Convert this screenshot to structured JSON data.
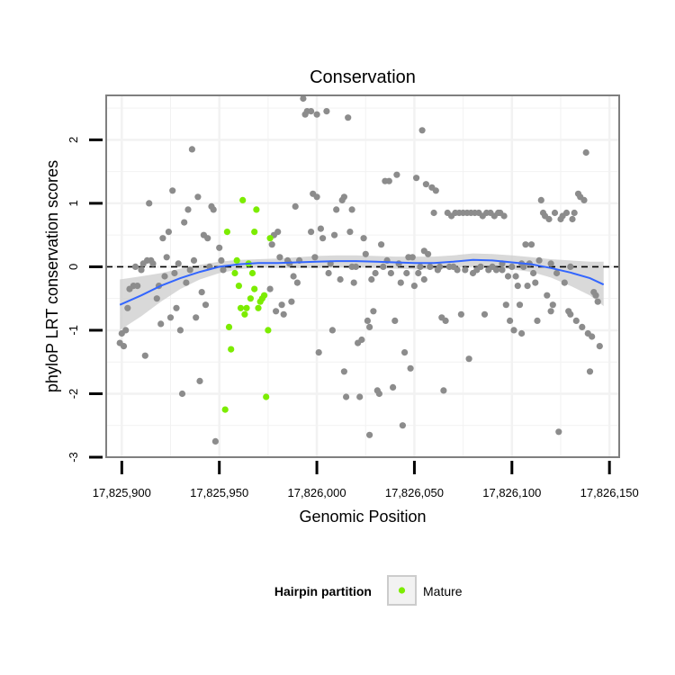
{
  "chart_data": {
    "type": "scatter",
    "title": "Conservation",
    "xlabel": "Genomic Position",
    "ylabel": "phyloP LRT conservation scores",
    "xlim": [
      17825892,
      17826155
    ],
    "ylim": [
      -3,
      2.7
    ],
    "x_ticks": [
      17825900,
      17825950,
      17826000,
      17826050,
      17826100,
      17826150
    ],
    "x_tick_labels": [
      "17,825,900",
      "17,825,950",
      "17,826,000",
      "17,826,050",
      "17,826,100",
      "17,826,150"
    ],
    "y_ticks": [
      -3,
      -2,
      -1,
      0,
      1,
      2
    ],
    "y_tick_labels": [
      "-3",
      "-2",
      "-1",
      "0",
      "1",
      "2"
    ],
    "reference_line": {
      "y": 0,
      "style": "dashed",
      "color": "#000000"
    },
    "grid": true,
    "legend": {
      "title": "Hairpin partition",
      "placement": "bottom",
      "entries": [
        "Mature"
      ]
    },
    "colors": {
      "other": "#8c8c8c",
      "mature": "#7cec00",
      "smooth": "#3366ff",
      "band": "#cccccc",
      "panel": "#ffffff",
      "grid": "#f2f2f2"
    },
    "smooth": {
      "x": [
        17825899,
        17825910,
        17825920,
        17825930,
        17825940,
        17825950,
        17825960,
        17825970,
        17825980,
        17825990,
        17826000,
        17826010,
        17826020,
        17826030,
        17826040,
        17826050,
        17826060,
        17826070,
        17826080,
        17826090,
        17826100,
        17826110,
        17826120,
        17826130,
        17826140,
        17826147
      ],
      "y": [
        -0.6,
        -0.45,
        -0.3,
        -0.18,
        -0.08,
        0.0,
        0.04,
        0.06,
        0.06,
        0.07,
        0.08,
        0.09,
        0.09,
        0.08,
        0.07,
        0.06,
        0.06,
        0.08,
        0.11,
        0.1,
        0.07,
        0.04,
        -0.02,
        -0.09,
        -0.18,
        -0.28
      ],
      "ci_upper": [
        -0.2,
        -0.15,
        -0.1,
        -0.03,
        0.03,
        0.08,
        0.11,
        0.12,
        0.13,
        0.15,
        0.17,
        0.18,
        0.18,
        0.17,
        0.16,
        0.16,
        0.16,
        0.18,
        0.21,
        0.2,
        0.18,
        0.15,
        0.12,
        0.1,
        0.08,
        0.08
      ],
      "ci_lower": [
        -1.0,
        -0.78,
        -0.55,
        -0.35,
        -0.2,
        -0.1,
        -0.04,
        -0.01,
        -0.02,
        -0.02,
        -0.02,
        -0.01,
        -0.01,
        -0.02,
        -0.03,
        -0.04,
        -0.04,
        -0.02,
        0.0,
        0.0,
        -0.04,
        -0.08,
        -0.17,
        -0.3,
        -0.45,
        -0.62
      ]
    },
    "series": [
      {
        "name": "Mature",
        "points": [
          [
            17825953,
            -2.25
          ],
          [
            17825954,
            0.55
          ],
          [
            17825955,
            -0.95
          ],
          [
            17825956,
            -1.3
          ],
          [
            17825958,
            -0.1
          ],
          [
            17825959,
            0.1
          ],
          [
            17825960,
            -0.3
          ],
          [
            17825961,
            -0.65
          ],
          [
            17825962,
            1.05
          ],
          [
            17825963,
            -0.75
          ],
          [
            17825964,
            -0.65
          ],
          [
            17825965,
            0.05
          ],
          [
            17825966,
            -0.5
          ],
          [
            17825967,
            -0.1
          ],
          [
            17825968,
            0.55
          ],
          [
            17825968,
            -0.35
          ],
          [
            17825969,
            0.9
          ],
          [
            17825970,
            -0.65
          ],
          [
            17825971,
            -0.55
          ],
          [
            17825972,
            -0.5
          ],
          [
            17825973,
            -0.45
          ],
          [
            17825974,
            -2.05
          ],
          [
            17825975,
            -1.0
          ],
          [
            17825976,
            0.45
          ]
        ]
      },
      {
        "name": "",
        "points": [
          [
            17825899,
            -1.2
          ],
          [
            17825900,
            -1.05
          ],
          [
            17825901,
            -1.25
          ],
          [
            17825902,
            -1.0
          ],
          [
            17825903,
            -0.65
          ],
          [
            17825904,
            -0.35
          ],
          [
            17825906,
            -0.3
          ],
          [
            17825907,
            0.0
          ],
          [
            17825908,
            -0.3
          ],
          [
            17825910,
            -0.05
          ],
          [
            17825911,
            0.05
          ],
          [
            17825912,
            -1.4
          ],
          [
            17825913,
            0.1
          ],
          [
            17825914,
            1.0
          ],
          [
            17825915,
            0.1
          ],
          [
            17825916,
            0.05
          ],
          [
            17825918,
            -0.5
          ],
          [
            17825919,
            -0.3
          ],
          [
            17825920,
            -0.9
          ],
          [
            17825921,
            0.45
          ],
          [
            17825922,
            -0.15
          ],
          [
            17825923,
            0.15
          ],
          [
            17825924,
            0.55
          ],
          [
            17825925,
            -0.8
          ],
          [
            17825926,
            1.2
          ],
          [
            17825927,
            -0.1
          ],
          [
            17825928,
            -0.65
          ],
          [
            17825929,
            0.05
          ],
          [
            17825930,
            -1.0
          ],
          [
            17825931,
            -2.0
          ],
          [
            17825932,
            0.7
          ],
          [
            17825933,
            -0.25
          ],
          [
            17825934,
            0.9
          ],
          [
            17825935,
            -0.05
          ],
          [
            17825936,
            1.85
          ],
          [
            17825937,
            0.1
          ],
          [
            17825938,
            -0.8
          ],
          [
            17825939,
            1.1
          ],
          [
            17825940,
            -1.8
          ],
          [
            17825941,
            -0.4
          ],
          [
            17825942,
            0.5
          ],
          [
            17825943,
            -0.6
          ],
          [
            17825944,
            0.45
          ],
          [
            17825945,
            0.0
          ],
          [
            17825946,
            0.95
          ],
          [
            17825947,
            0.9
          ],
          [
            17825948,
            -2.75
          ],
          [
            17825950,
            0.3
          ],
          [
            17825951,
            0.1
          ],
          [
            17825952,
            -0.05
          ]
        ]
      },
      {
        "name": "",
        "points": [
          [
            17825976,
            -0.35
          ],
          [
            17825977,
            0.35
          ],
          [
            17825978,
            0.5
          ],
          [
            17825979,
            -0.7
          ],
          [
            17825980,
            0.55
          ],
          [
            17825981,
            0.15
          ],
          [
            17825982,
            -0.6
          ],
          [
            17825983,
            -0.75
          ],
          [
            17825985,
            0.1
          ],
          [
            17825986,
            0.05
          ],
          [
            17825987,
            -0.55
          ],
          [
            17825988,
            -0.15
          ],
          [
            17825989,
            0.95
          ],
          [
            17825990,
            -0.25
          ],
          [
            17825991,
            0.1
          ],
          [
            17825993,
            2.65
          ],
          [
            17825994,
            2.4
          ],
          [
            17825995,
            2.45
          ],
          [
            17825997,
            0.55
          ],
          [
            17825997,
            2.45
          ],
          [
            17825998,
            1.15
          ],
          [
            17825999,
            0.15
          ],
          [
            17826000,
            2.4
          ],
          [
            17826000,
            1.1
          ],
          [
            17826001,
            -1.35
          ],
          [
            17826002,
            0.6
          ],
          [
            17826003,
            0.45
          ],
          [
            17826005,
            2.45
          ],
          [
            17826006,
            -0.1
          ],
          [
            17826007,
            0.05
          ],
          [
            17826008,
            -1.0
          ],
          [
            17826009,
            0.5
          ],
          [
            17826010,
            0.9
          ],
          [
            17826012,
            -0.2
          ],
          [
            17826013,
            1.05
          ],
          [
            17826014,
            -1.65
          ],
          [
            17826014,
            1.1
          ],
          [
            17826015,
            -2.05
          ],
          [
            17826016,
            2.35
          ],
          [
            17826017,
            0.55
          ],
          [
            17826018,
            0.0
          ],
          [
            17826018,
            0.9
          ],
          [
            17826019,
            -0.25
          ],
          [
            17826020,
            0.0
          ],
          [
            17826021,
            -1.2
          ],
          [
            17826022,
            -2.05
          ],
          [
            17826023,
            -1.15
          ],
          [
            17826024,
            0.45
          ],
          [
            17826025,
            0.2
          ],
          [
            17826026,
            -0.85
          ]
        ]
      },
      {
        "name": "",
        "points": [
          [
            17826027,
            -0.95
          ],
          [
            17826027,
            -2.65
          ],
          [
            17826028,
            -0.2
          ],
          [
            17826029,
            -0.7
          ],
          [
            17826030,
            -0.1
          ],
          [
            17826031,
            -1.95
          ],
          [
            17826032,
            -2.0
          ],
          [
            17826033,
            0.35
          ],
          [
            17826034,
            0.0
          ],
          [
            17826035,
            1.35
          ],
          [
            17826036,
            0.1
          ],
          [
            17826037,
            1.35
          ],
          [
            17826038,
            -0.1
          ],
          [
            17826039,
            -1.9
          ],
          [
            17826040,
            -0.85
          ],
          [
            17826041,
            1.45
          ],
          [
            17826042,
            0.05
          ],
          [
            17826043,
            -0.25
          ],
          [
            17826044,
            -2.5
          ],
          [
            17826045,
            -1.35
          ],
          [
            17826046,
            -0.1
          ],
          [
            17826047,
            0.15
          ],
          [
            17826048,
            -1.6
          ],
          [
            17826049,
            0.15
          ],
          [
            17826050,
            -0.3
          ],
          [
            17826051,
            1.4
          ],
          [
            17826052,
            -0.1
          ],
          [
            17826053,
            0.0
          ],
          [
            17826054,
            2.15
          ],
          [
            17826055,
            0.25
          ],
          [
            17826055,
            -0.2
          ],
          [
            17826056,
            1.3
          ],
          [
            17826057,
            0.2
          ],
          [
            17826058,
            0.0
          ],
          [
            17826059,
            1.25
          ],
          [
            17826060,
            0.85
          ],
          [
            17826061,
            1.2
          ],
          [
            17826062,
            -0.05
          ],
          [
            17826063,
            0.0
          ],
          [
            17826064,
            -0.8
          ],
          [
            17826065,
            -1.95
          ],
          [
            17826066,
            -0.85
          ],
          [
            17826067,
            0.85
          ],
          [
            17826068,
            0.0
          ],
          [
            17826069,
            0.8
          ]
        ]
      },
      {
        "name": "",
        "points": [
          [
            17826070,
            0.0
          ],
          [
            17826071,
            0.85
          ],
          [
            17826072,
            -0.05
          ],
          [
            17826073,
            0.85
          ],
          [
            17826074,
            -0.75
          ],
          [
            17826075,
            0.85
          ],
          [
            17826076,
            -0.05
          ],
          [
            17826077,
            0.85
          ],
          [
            17826078,
            -1.45
          ],
          [
            17826079,
            0.85
          ],
          [
            17826080,
            -0.1
          ],
          [
            17826081,
            0.85
          ],
          [
            17826082,
            -0.05
          ],
          [
            17826083,
            0.85
          ],
          [
            17826084,
            0.0
          ],
          [
            17826085,
            0.8
          ],
          [
            17826086,
            -0.75
          ],
          [
            17826087,
            0.85
          ],
          [
            17826088,
            -0.05
          ],
          [
            17826089,
            0.85
          ],
          [
            17826090,
            0.0
          ],
          [
            17826091,
            0.8
          ],
          [
            17826092,
            -0.05
          ],
          [
            17826093,
            0.85
          ],
          [
            17826094,
            0.85
          ],
          [
            17826095,
            -0.05
          ],
          [
            17826096,
            0.8
          ],
          [
            17826097,
            -0.6
          ],
          [
            17826098,
            -0.15
          ],
          [
            17826099,
            -0.85
          ],
          [
            17826100,
            0.0
          ],
          [
            17826101,
            -1.0
          ],
          [
            17826102,
            -0.15
          ],
          [
            17826103,
            -0.3
          ],
          [
            17826104,
            -0.6
          ],
          [
            17826105,
            -1.05
          ],
          [
            17826106,
            0.0
          ],
          [
            17826107,
            0.35
          ],
          [
            17826108,
            -0.3
          ],
          [
            17826109,
            0.05
          ]
        ]
      },
      {
        "name": "",
        "points": [
          [
            17826110,
            0.35
          ],
          [
            17826111,
            -0.1
          ],
          [
            17826112,
            -0.25
          ],
          [
            17826113,
            -0.85
          ],
          [
            17826114,
            0.1
          ],
          [
            17826115,
            1.05
          ],
          [
            17826116,
            0.85
          ],
          [
            17826117,
            0.8
          ],
          [
            17826118,
            -0.45
          ],
          [
            17826119,
            0.75
          ],
          [
            17826120,
            -0.7
          ],
          [
            17826121,
            -0.6
          ],
          [
            17826122,
            0.85
          ],
          [
            17826123,
            -0.1
          ],
          [
            17826124,
            -2.6
          ],
          [
            17826125,
            0.75
          ],
          [
            17826126,
            0.8
          ],
          [
            17826127,
            -0.25
          ],
          [
            17826128,
            0.85
          ],
          [
            17826129,
            -0.7
          ],
          [
            17826130,
            -0.75
          ],
          [
            17826131,
            0.75
          ],
          [
            17826132,
            0.85
          ],
          [
            17826133,
            -0.85
          ],
          [
            17826134,
            1.15
          ],
          [
            17826135,
            1.1
          ],
          [
            17826136,
            -0.95
          ],
          [
            17826137,
            1.05
          ],
          [
            17826138,
            1.8
          ],
          [
            17826139,
            -1.05
          ],
          [
            17826140,
            -1.65
          ],
          [
            17826141,
            -1.1
          ],
          [
            17826142,
            -0.4
          ],
          [
            17826143,
            -0.45
          ],
          [
            17826144,
            -0.55
          ],
          [
            17826145,
            -1.25
          ],
          [
            17826130,
            0.0
          ],
          [
            17826120,
            0.05
          ],
          [
            17826105,
            0.05
          ],
          [
            17826095,
            0.05
          ]
        ]
      }
    ]
  }
}
